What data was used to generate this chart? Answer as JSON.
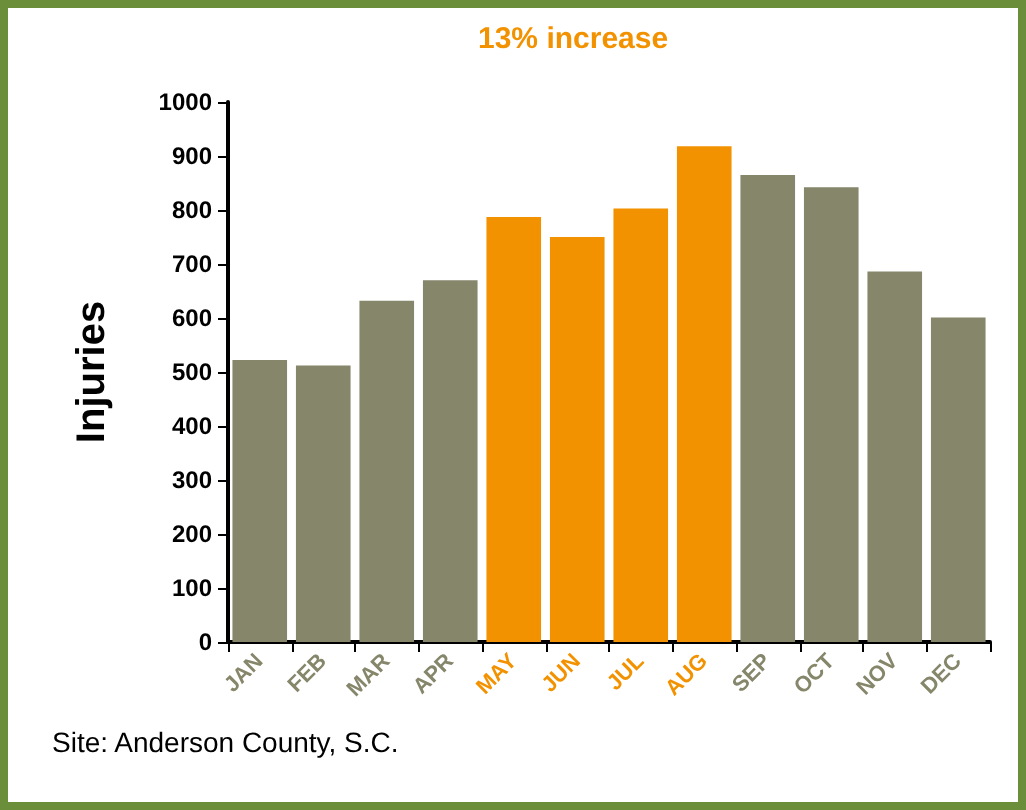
{
  "chart_data": {
    "type": "bar",
    "ylabel": "Injuries",
    "categories": [
      "JAN",
      "FEB",
      "MAR",
      "APR",
      "MAY",
      "JUN",
      "JUL",
      "AUG",
      "SEP",
      "OCT",
      "NOV",
      "DEC"
    ],
    "values": [
      522,
      512,
      632,
      670,
      787,
      750,
      803,
      918,
      865,
      842,
      686,
      601
    ],
    "colors": [
      "#85866a",
      "#85866a",
      "#85866a",
      "#85866a",
      "#f39200",
      "#f39200",
      "#f39200",
      "#f39200",
      "#85866a",
      "#85866a",
      "#85866a",
      "#85866a"
    ],
    "ylim": [
      0,
      1000
    ],
    "yticks": [
      0,
      100,
      200,
      300,
      400,
      500,
      600,
      700,
      800,
      900,
      1000
    ],
    "grid": false,
    "annotations": [
      "13% increase",
      "Site: Anderson County, S.C."
    ]
  }
}
